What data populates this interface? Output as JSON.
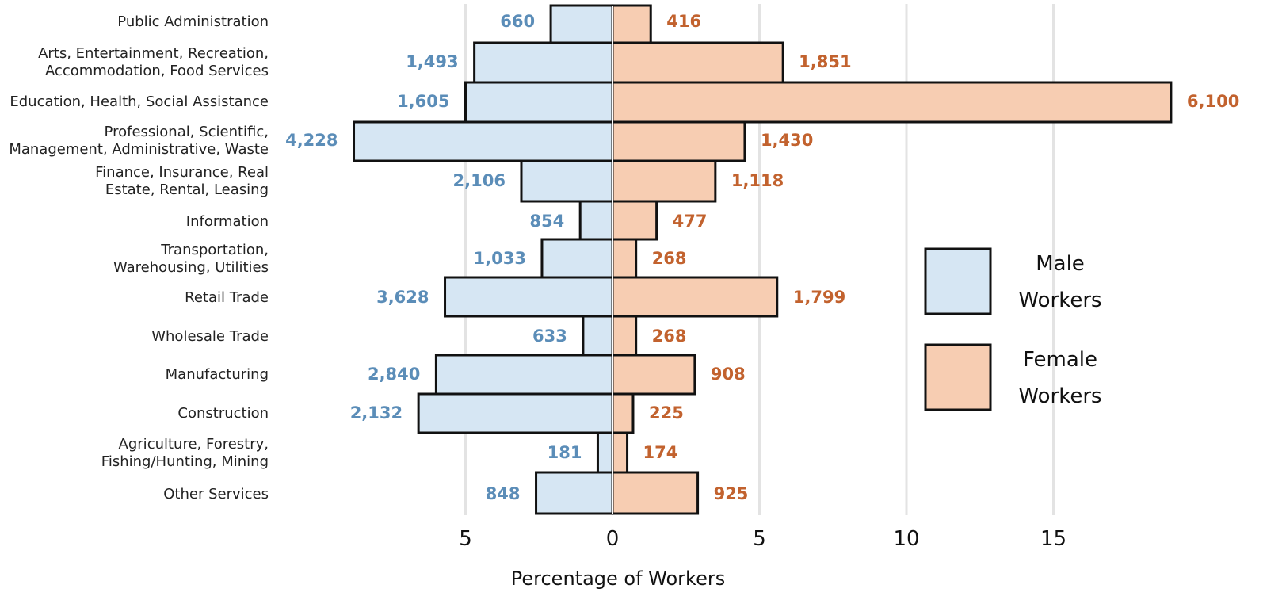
{
  "chart_data": {
    "type": "bar",
    "orientation": "horizontal-butterfly",
    "xlabel": "Percentage of Workers",
    "x_ticks": [
      {
        "value": -5,
        "label": "5"
      },
      {
        "value": 0,
        "label": "0"
      },
      {
        "value": 5,
        "label": "5"
      },
      {
        "value": 10,
        "label": "10"
      },
      {
        "value": 15,
        "label": "15"
      }
    ],
    "xlim": [
      -8.8,
      19
    ],
    "grid": true,
    "legend_position": "right",
    "categories": [
      [
        "Public Administration"
      ],
      [
        "Arts, Entertainment, Recreation,",
        "Accommodation, Food Services"
      ],
      [
        "Education, Health, Social Assistance"
      ],
      [
        "Professional, Scientific,",
        "Management, Administrative, Waste"
      ],
      [
        "Finance, Insurance, Real",
        "Estate, Rental, Leasing"
      ],
      [
        "Information"
      ],
      [
        "Transportation,",
        "Warehousing, Utilities"
      ],
      [
        "Retail Trade"
      ],
      [
        "Wholesale Trade"
      ],
      [
        "Manufacturing"
      ],
      [
        "Construction"
      ],
      [
        "Agriculture, Forestry,",
        "Fishing/Hunting, Mining"
      ],
      [
        "Other Services"
      ]
    ],
    "series": [
      {
        "name": [
          "Male",
          "Workers"
        ],
        "side": "left",
        "color": "#d6e6f3",
        "label_color": "#5b8db8",
        "percent": [
          2.1,
          4.7,
          5.0,
          8.8,
          3.1,
          1.1,
          2.4,
          5.7,
          1.0,
          6.0,
          6.6,
          0.5,
          2.6
        ],
        "counts": [
          "660",
          "1,493",
          "1,605",
          "4,228",
          "2,106",
          "854",
          "1,033",
          "3,628",
          "633",
          "2,840",
          "2,132",
          "181",
          "848"
        ]
      },
      {
        "name": [
          "Female",
          "Workers"
        ],
        "side": "right",
        "color": "#f7cdb2",
        "label_color": "#c2622e",
        "percent": [
          1.3,
          5.8,
          19.0,
          4.5,
          3.5,
          1.5,
          0.8,
          5.6,
          0.8,
          2.8,
          0.7,
          0.5,
          2.9
        ],
        "counts": [
          "416",
          "1,851",
          "6,100",
          "1,430",
          "1,118",
          "477",
          "268",
          "1,799",
          "268",
          "908",
          "225",
          "174",
          "925"
        ]
      }
    ]
  }
}
